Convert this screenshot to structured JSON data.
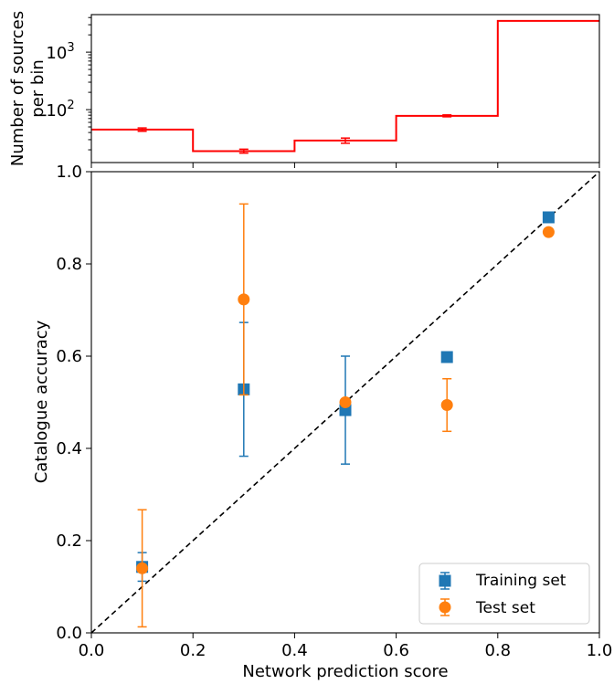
{
  "chart_data": [
    {
      "type": "histogram",
      "ylabel": [
        "Number of sources",
        "per bin"
      ],
      "yscale": "log",
      "ylim": [
        12,
        4500
      ],
      "xlim": [
        0.0,
        1.0
      ],
      "yticks": [
        {
          "value": 100,
          "base": "10",
          "exp": "2"
        },
        {
          "value": 1000,
          "base": "10",
          "exp": "3"
        }
      ],
      "bins": [
        0.0,
        0.2,
        0.4,
        0.6,
        0.8,
        1.0
      ],
      "counts": [
        45,
        19,
        29,
        78,
        3500
      ],
      "errors": [
        {
          "x": 0.1,
          "y": 45,
          "lo": 42,
          "hi": 48
        },
        {
          "x": 0.3,
          "y": 19,
          "lo": 17.5,
          "hi": 20.5
        },
        {
          "x": 0.5,
          "y": 29,
          "lo": 26,
          "hi": 32
        },
        {
          "x": 0.7,
          "y": 78,
          "lo": 75,
          "hi": 81
        }
      ],
      "color": "#ff0000"
    },
    {
      "type": "scatter",
      "xlabel": "Network prediction score",
      "ylabel": "Catalogue accuracy",
      "xlim": [
        0.0,
        1.0
      ],
      "ylim": [
        0.0,
        1.0
      ],
      "xticks": [
        "0.0",
        "0.2",
        "0.4",
        "0.6",
        "0.8",
        "1.0"
      ],
      "yticks": [
        "0.0",
        "0.2",
        "0.4",
        "0.6",
        "0.8",
        "1.0"
      ],
      "legend_position": "lower-right",
      "reference_line": {
        "style": "dashed",
        "color": "#000000",
        "from": [
          0,
          0
        ],
        "to": [
          1,
          1
        ]
      },
      "series": [
        {
          "name": "Training set",
          "marker": "square",
          "color": "#1f77b4",
          "points": [
            {
              "x": 0.1,
              "y": 0.143,
              "lo": 0.112,
              "hi": 0.174
            },
            {
              "x": 0.3,
              "y": 0.528,
              "lo": 0.383,
              "hi": 0.673
            },
            {
              "x": 0.5,
              "y": 0.483,
              "lo": 0.366,
              "hi": 0.6
            },
            {
              "x": 0.7,
              "y": 0.598,
              "lo": 0.598,
              "hi": 0.598
            },
            {
              "x": 0.9,
              "y": 0.901,
              "lo": 0.901,
              "hi": 0.901
            }
          ]
        },
        {
          "name": "Test set",
          "marker": "circle",
          "color": "#ff7f0e",
          "points": [
            {
              "x": 0.1,
              "y": 0.14,
              "lo": 0.013,
              "hi": 0.267
            },
            {
              "x": 0.3,
              "y": 0.723,
              "lo": 0.516,
              "hi": 0.93
            },
            {
              "x": 0.5,
              "y": 0.5,
              "lo": 0.5,
              "hi": 0.5
            },
            {
              "x": 0.7,
              "y": 0.494,
              "lo": 0.437,
              "hi": 0.551
            },
            {
              "x": 0.9,
              "y": 0.869,
              "lo": 0.869,
              "hi": 0.869
            }
          ]
        }
      ]
    }
  ]
}
